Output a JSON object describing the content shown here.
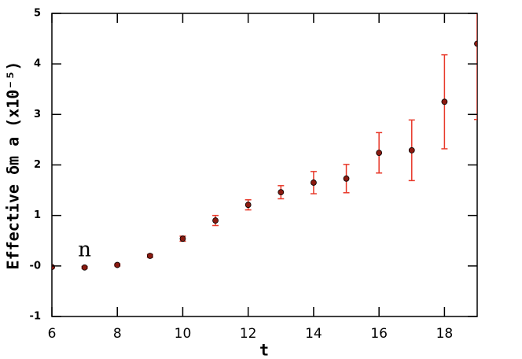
{
  "chart_data": {
    "type": "errorbar",
    "xlabel": "t",
    "ylabel": "Effective δm a   (x10⁻⁵)",
    "annotation": "n",
    "annotation_x": 7,
    "annotation_y": 0.3,
    "x": [
      6,
      7,
      8,
      9,
      10,
      11,
      12,
      13,
      14,
      15,
      16,
      17,
      18,
      19
    ],
    "values": [
      -0.02,
      -0.03,
      0.02,
      0.2,
      0.54,
      0.9,
      1.21,
      1.46,
      1.65,
      1.73,
      2.24,
      2.29,
      3.25,
      4.4
    ],
    "errors": [
      0.02,
      0.02,
      0.02,
      0.03,
      0.05,
      0.1,
      0.1,
      0.13,
      0.22,
      0.28,
      0.4,
      0.6,
      0.93,
      1.5
    ],
    "marker_color": "#8b1a10",
    "error_color": "#e8392a",
    "xlim": [
      6,
      19
    ],
    "xticks": [
      6,
      8,
      10,
      12,
      14,
      16,
      18
    ],
    "ylim": [
      -1,
      5
    ],
    "yticks": [
      -1,
      {
        "value": 0,
        "label": "-0"
      },
      1,
      2,
      3,
      4,
      5
    ]
  }
}
